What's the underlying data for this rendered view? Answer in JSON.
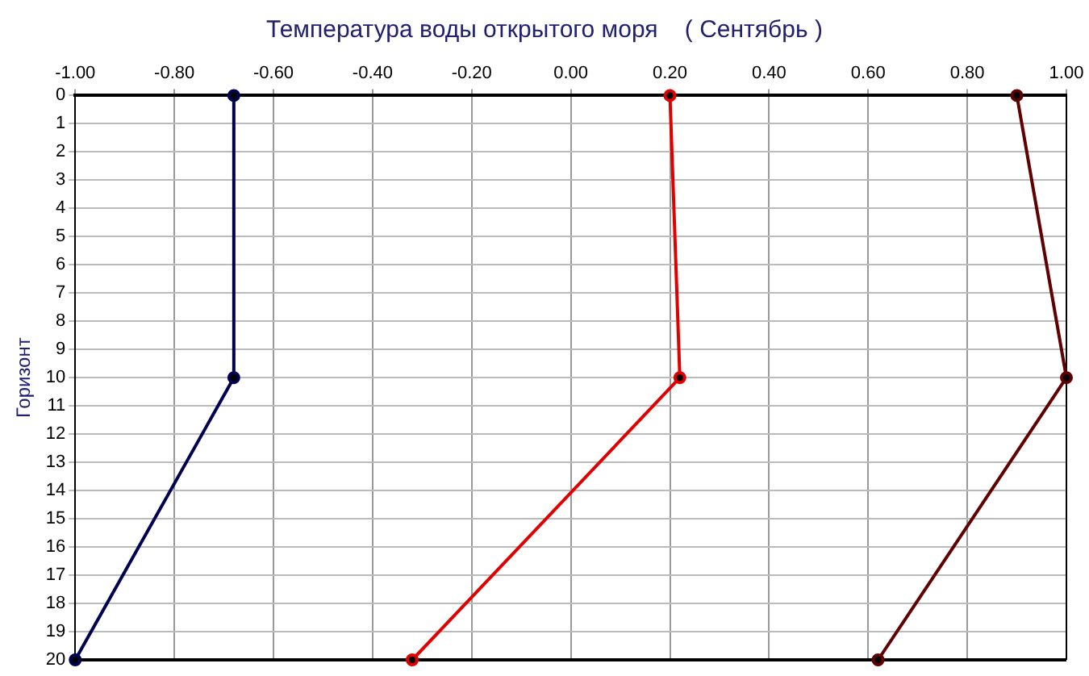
{
  "chart_data": {
    "type": "line",
    "title": "Температура воды открытого моря    ( Сентябрь )",
    "ylabel": "Горизонт",
    "series": [
      {
        "color": "#000050",
        "x": [
          -0.68,
          -0.68,
          -1.0
        ],
        "values": [
          0,
          10,
          20
        ]
      },
      {
        "color": "#e00000",
        "x": [
          0.2,
          0.22,
          -0.32
        ],
        "values": [
          0,
          10,
          20
        ]
      },
      {
        "color": "#600000",
        "x": [
          0.9,
          1.0,
          0.62
        ],
        "values": [
          0,
          10,
          20
        ]
      }
    ],
    "xlim": [
      -1,
      1
    ],
    "xticks": [
      {
        "value": -1,
        "label": "-1.00"
      },
      {
        "value": -0.8,
        "label": "-0.80"
      },
      {
        "value": -0.6,
        "label": "-0.60"
      },
      {
        "value": -0.4,
        "label": "-0.40"
      },
      {
        "value": -0.2,
        "label": "-0.20"
      },
      {
        "value": 0,
        "label": "0.00"
      },
      {
        "value": 0.2,
        "label": "0.20"
      },
      {
        "value": 0.4,
        "label": "0.40"
      },
      {
        "value": 0.6,
        "label": "0.60"
      },
      {
        "value": 0.8,
        "label": "0.80"
      },
      {
        "value": 1,
        "label": "1.00"
      }
    ],
    "ylim": [
      20,
      0
    ],
    "yticks": [
      0,
      1,
      2,
      3,
      4,
      5,
      6,
      7,
      8,
      9,
      10,
      11,
      12,
      13,
      14,
      15,
      16,
      17,
      18,
      19,
      20
    ],
    "grid": true,
    "legend": false,
    "marker": "circle",
    "line_style": "solid"
  }
}
